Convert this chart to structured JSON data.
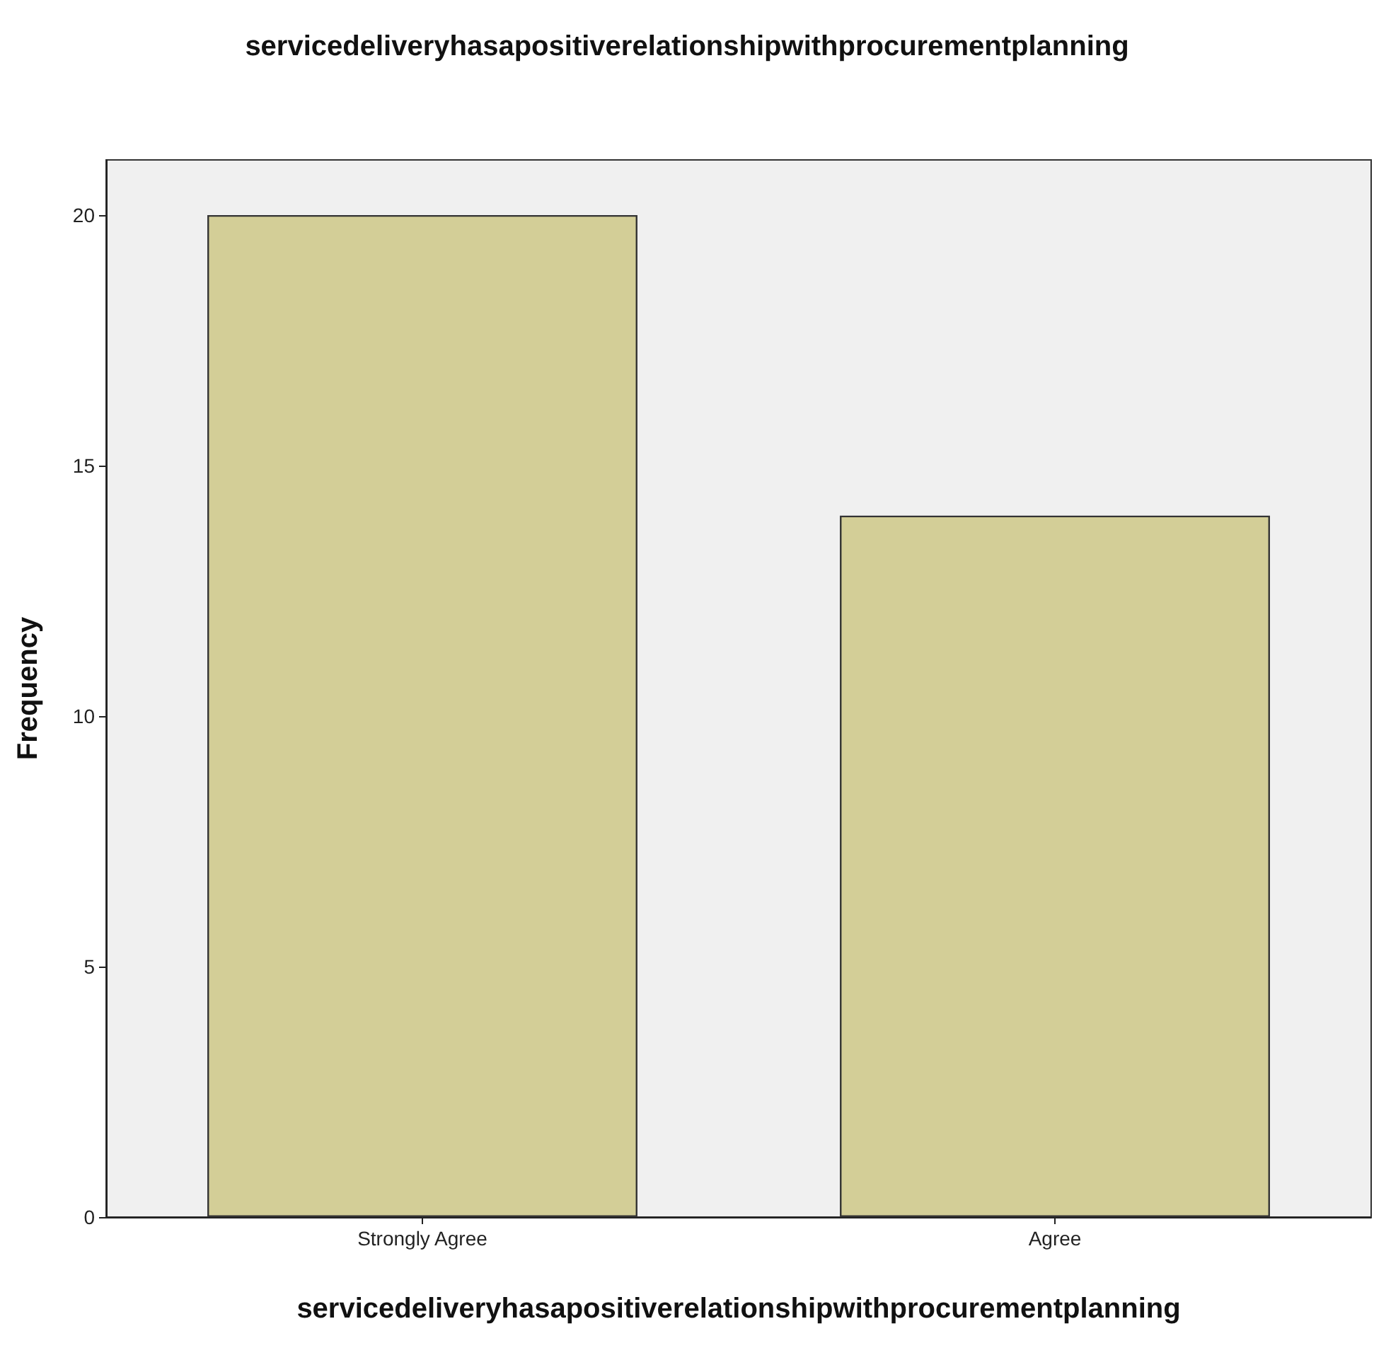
{
  "chart_data": {
    "type": "bar",
    "title": "servicedeliveryhasapositiverelationshipwithprocurementplanning",
    "xlabel": "servicedeliveryhasapositiverelationshipwithprocurementplanning",
    "ylabel": "Frequency",
    "categories": [
      "Strongly Agree",
      "Agree"
    ],
    "values": [
      20,
      14
    ],
    "color": "#d3ce97",
    "ylim": [
      0,
      21.1
    ],
    "yticks": [
      0,
      5,
      10,
      15,
      20
    ],
    "grid": false
  }
}
